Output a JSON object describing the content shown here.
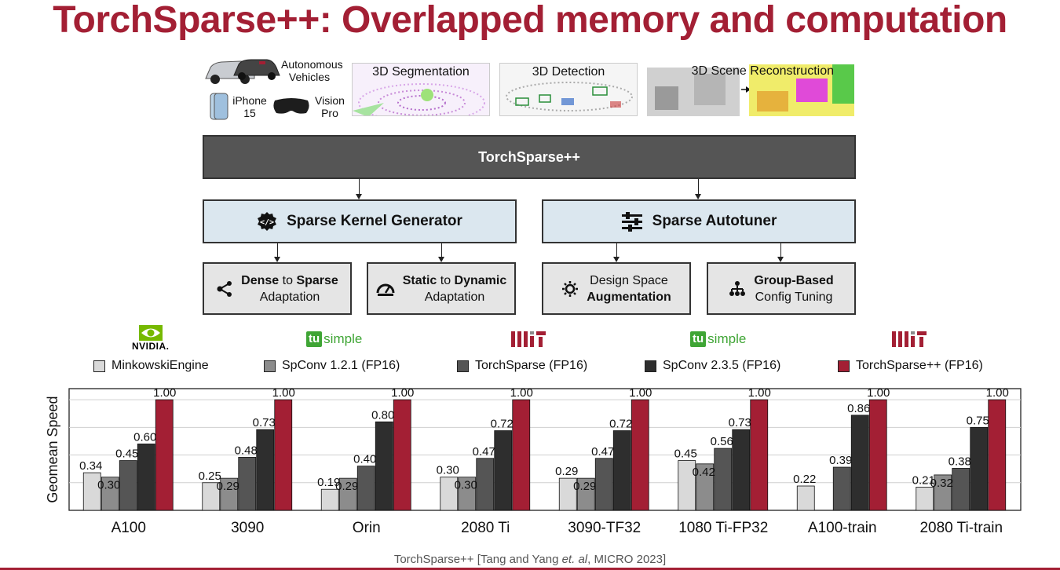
{
  "slide": {
    "title": "TorchSparse++: Overlapped memory and computation",
    "footer_prefix": "TorchSparse++ [Tang and Yang ",
    "footer_etal": "et. al",
    "footer_suffix": ", MICRO 2023]"
  },
  "applications": {
    "devices": [
      "Autonomous Vehicles",
      "iPhone 15",
      "Vision Pro"
    ],
    "tasks": [
      "3D Segmentation",
      "3D Detection",
      "3D Scene Reconstruction"
    ]
  },
  "architecture": {
    "main": "TorchSparse++",
    "left": "Sparse Kernel Generator",
    "right": "Sparse Autotuner",
    "leaves": [
      {
        "a": "Dense",
        "b": " to ",
        "c": "Sparse",
        "line2": "Adaptation"
      },
      {
        "a": "Static",
        "b": " to ",
        "c": "Dynamic",
        "line2": "Adaptation"
      },
      {
        "line1": "Design Space",
        "line2": "Augmentation"
      },
      {
        "line1": "Group-Based",
        "line2": "Config Tuning"
      }
    ]
  },
  "logos": {
    "nvidia": "NVIDIA.",
    "tusimple_badge": "tu",
    "tusimple_text": "simple",
    "mit": "MIT"
  },
  "colors": {
    "brand_red": "#a31f34",
    "series": [
      "#d9d9d9",
      "#8c8c8c",
      "#555555",
      "#2e2e2e",
      "#a31f34"
    ]
  },
  "chart_data": {
    "type": "bar",
    "ylabel": "Geomean Speed",
    "categories": [
      "A100",
      "3090",
      "Orin",
      "2080 Ti",
      "3090-TF32",
      "1080 Ti-FP32",
      "A100-train",
      "2080 Ti-train"
    ],
    "series": [
      {
        "name": "MinkowskiEngine",
        "values": [
          0.34,
          0.25,
          0.19,
          0.3,
          0.29,
          0.45,
          0.22,
          0.21
        ]
      },
      {
        "name": "SpConv 1.2.1 (FP16)",
        "values": [
          0.3,
          0.29,
          0.29,
          0.3,
          0.29,
          0.42,
          null,
          0.32
        ]
      },
      {
        "name": "TorchSparse (FP16)",
        "values": [
          0.45,
          0.48,
          0.4,
          0.47,
          0.47,
          0.56,
          0.39,
          0.38
        ]
      },
      {
        "name": "SpConv 2.3.5 (FP16)",
        "values": [
          0.6,
          0.73,
          0.8,
          0.72,
          0.72,
          0.73,
          0.86,
          0.75
        ]
      },
      {
        "name": "TorchSparse++ (FP16)",
        "values": [
          1.0,
          1.0,
          1.0,
          1.0,
          1.0,
          1.0,
          1.0,
          1.0
        ]
      }
    ],
    "ylim": [
      0,
      1.1
    ],
    "grid": true,
    "legend_position": "top"
  }
}
